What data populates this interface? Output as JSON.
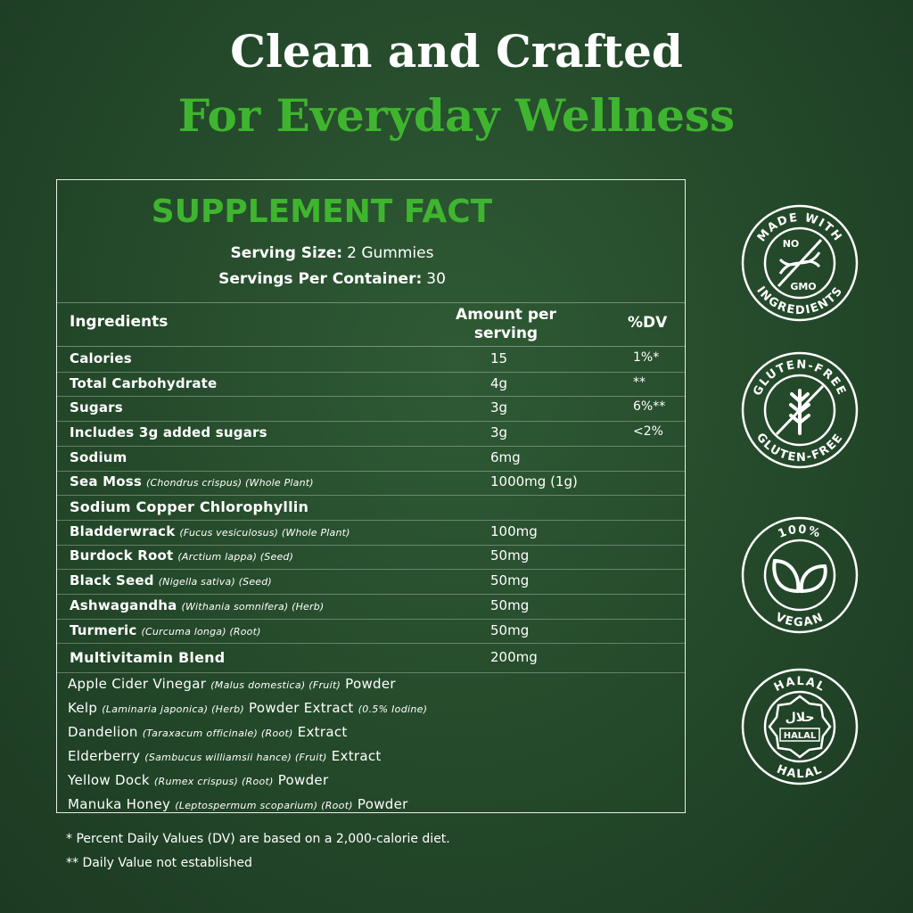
{
  "header": {
    "title": "Clean and Crafted",
    "subtitle": "For Everyday Wellness"
  },
  "facts": {
    "title": "SUPPLEMENT FACT",
    "serving": [
      {
        "label": "Serving Size:",
        "value": "2 Gummies"
      },
      {
        "label": "Servings Per Container:",
        "value": "30"
      }
    ],
    "columns": [
      "Ingredients",
      "Amount per serving",
      "%DV"
    ],
    "rows": [
      {
        "style": "item",
        "name": [
          {
            "text": "Calories"
          }
        ],
        "amount": "15",
        "dv": "1%*"
      },
      {
        "style": "item",
        "name": [
          {
            "text": "Total Carbohydrate"
          }
        ],
        "amount": "4g",
        "dv": "**"
      },
      {
        "style": "item",
        "name": [
          {
            "text": "Sugars"
          }
        ],
        "amount": "3g",
        "dv": "6%**"
      },
      {
        "style": "item",
        "name": [
          {
            "text": "Includes 3g added sugars"
          }
        ],
        "amount": "3g",
        "dv": "<2%"
      },
      {
        "style": "item",
        "name": [
          {
            "text": "Sodium"
          }
        ],
        "amount": "6mg"
      },
      {
        "style": "item",
        "name": [
          {
            "text": "Sea Moss"
          },
          {
            "text": "(Chondrus crispus) (Whole Plant)",
            "note": true
          }
        ],
        "amount": "1000mg (1g)"
      },
      {
        "style": "group",
        "name": [
          {
            "text": "Sodium Copper Chlorophyllin"
          }
        ]
      },
      {
        "style": "item",
        "name": [
          {
            "text": "Bladderwrack"
          },
          {
            "text": "(Fucus vesiculosus) (Whole Plant)",
            "note": true
          }
        ],
        "amount": "100mg"
      },
      {
        "style": "item",
        "name": [
          {
            "text": "Burdock Root"
          },
          {
            "text": "(Arctium lappa) (Seed)",
            "note": true
          }
        ],
        "amount": "50mg"
      },
      {
        "style": "item",
        "name": [
          {
            "text": "Black Seed"
          },
          {
            "text": "(Nigella sativa) (Seed)",
            "note": true
          }
        ],
        "amount": "50mg"
      },
      {
        "style": "item",
        "name": [
          {
            "text": "Ashwagandha"
          },
          {
            "text": "(Withania somnifera) (Herb)",
            "note": true
          }
        ],
        "amount": "50mg"
      },
      {
        "style": "item",
        "name": [
          {
            "text": "Turmeric"
          },
          {
            "text": "(Curcuma longa) (Root)",
            "note": true
          }
        ],
        "amount": "50mg"
      },
      {
        "style": "group",
        "name": [
          {
            "text": "Multivitamin Blend"
          }
        ],
        "amount": "200mg"
      },
      {
        "style": "blend",
        "name": [
          {
            "text": "Apple Cider Vinegar"
          },
          {
            "text": "(Malus domestica) (Fruit)",
            "note": true
          },
          {
            "text": "Powder"
          }
        ]
      },
      {
        "style": "blend",
        "name": [
          {
            "text": "Kelp"
          },
          {
            "text": "(Laminaria japonica) (Herb)",
            "note": true
          },
          {
            "text": "Powder Extract"
          },
          {
            "text": "(0.5% Iodine)",
            "note": true
          }
        ]
      },
      {
        "style": "blend",
        "name": [
          {
            "text": "Dandelion"
          },
          {
            "text": "(Taraxacum officinale) (Root)",
            "note": true
          },
          {
            "text": "Extract"
          }
        ]
      },
      {
        "style": "blend",
        "name": [
          {
            "text": "Elderberry"
          },
          {
            "text": "(Sambucus williamsii hance) (Fruit)",
            "note": true
          },
          {
            "text": "Extract"
          }
        ]
      },
      {
        "style": "blend",
        "name": [
          {
            "text": "Yellow Dock"
          },
          {
            "text": "(Rumex crispus) (Root)",
            "note": true
          },
          {
            "text": "Powder"
          }
        ]
      },
      {
        "style": "blend",
        "name": [
          {
            "text": "Manuka Honey"
          },
          {
            "text": "(Leptospermum scoparium) (Root)",
            "note": true
          },
          {
            "text": "Powder"
          }
        ]
      }
    ]
  },
  "footnotes": [
    "* Percent Daily Values (DV) are based on a 2,000-calorie diet.",
    "** Daily Value not established"
  ],
  "badges": [
    {
      "top": "MADE WITH",
      "bottom": "INGREDIENTS",
      "center": [
        "NO",
        "GMO"
      ]
    },
    {
      "top": "GLUTEN-FREE",
      "bottom": "GLUTEN-FREE"
    },
    {
      "top": "100%",
      "bottom": "VEGAN"
    },
    {
      "top": "HALAL",
      "bottom": "HALAL",
      "center": [
        "حلال",
        "HALAL"
      ]
    }
  ]
}
